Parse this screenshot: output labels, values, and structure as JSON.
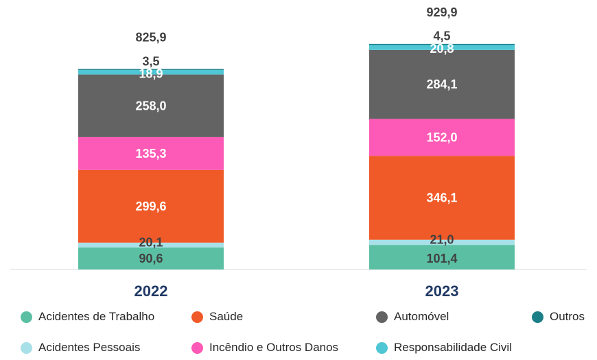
{
  "chart_data": {
    "type": "bar",
    "stacked": true,
    "categories": [
      "2022",
      "2023"
    ],
    "totals": [
      "825,9",
      "929,9"
    ],
    "series": [
      {
        "name": "Acidentes de Trabalho",
        "values": [
          90.6,
          101.4
        ],
        "labels": [
          "90,6",
          "101,4"
        ],
        "color": "#5bc0a3",
        "label_color": "#404040"
      },
      {
        "name": "Acidentes Pessoais",
        "values": [
          20.1,
          21.0
        ],
        "labels": [
          "20,1",
          "21,0"
        ],
        "color": "#a8e0e8",
        "label_color": "#404040"
      },
      {
        "name": "Saúde",
        "values": [
          299.6,
          346.1
        ],
        "labels": [
          "299,6",
          "346,1"
        ],
        "color": "#f05a28",
        "label_color": "#ffffff"
      },
      {
        "name": "Incêndio e Outros Danos",
        "values": [
          135.3,
          152.0
        ],
        "labels": [
          "135,3",
          "152,0"
        ],
        "color": "#fc5ab6",
        "label_color": "#ffffff"
      },
      {
        "name": "Automóvel",
        "values": [
          258.0,
          284.1
        ],
        "labels": [
          "258,0",
          "284,1"
        ],
        "color": "#636363",
        "label_color": "#ffffff"
      },
      {
        "name": "Responsabilidade Civil",
        "values": [
          18.9,
          20.8
        ],
        "labels": [
          "18,9",
          "20,8"
        ],
        "color": "#4fc6d4",
        "label_color": "#ffffff"
      },
      {
        "name": "Outros",
        "values": [
          3.5,
          4.5
        ],
        "labels": [
          "3,5",
          "4,5"
        ],
        "color": "#1b7f88",
        "label_color": "#404040"
      }
    ],
    "legend": {
      "position": "bottom",
      "order": [
        "Acidentes de Trabalho",
        "Saúde",
        "Automóvel",
        "Outros",
        "Acidentes Pessoais",
        "Incêndio e Outros Danos",
        "Responsabilidade Civil"
      ]
    },
    "grid": false,
    "axis_visible": false
  }
}
